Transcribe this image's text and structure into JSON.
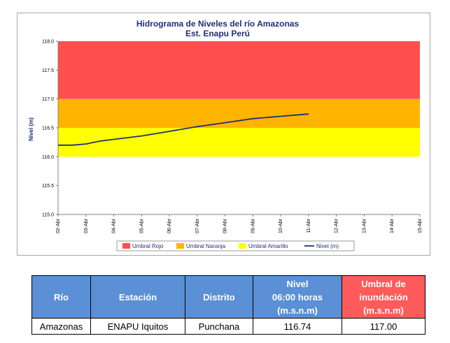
{
  "chart_data": {
    "type": "line",
    "title": "Hidrograma de Niveles del río Amazonas",
    "subtitle": "Est. Enapu Perú",
    "ylabel": "Nivel (m)",
    "xlabel": "",
    "ylim": [
      115.0,
      118.0
    ],
    "ytick_step": 0.5,
    "ytick_labels": [
      "115.0",
      "115.5",
      "116.0",
      "116.5",
      "117.0",
      "117.5",
      "118.0"
    ],
    "categories": [
      "02-Abr",
      "03-Abr",
      "04-Abr",
      "05-Abr",
      "06-Abr",
      "07-Abr",
      "08-Abr",
      "09-Abr",
      "10-Abr",
      "11-Abr",
      "12-Abr",
      "13-Abr",
      "14-Abr",
      "15-Abr"
    ],
    "bands": [
      {
        "name": "Umbral Rojo",
        "from": 117.0,
        "to": 118.0,
        "color": "#ff4f4f"
      },
      {
        "name": "Umbral Naranja",
        "from": 116.5,
        "to": 117.0,
        "color": "#ffb400"
      },
      {
        "name": "Umbral Amarillo",
        "from": 116.0,
        "to": 116.5,
        "color": "#ffff00"
      }
    ],
    "series": [
      {
        "name": "Nivel (m)",
        "color": "#1f2f7a",
        "x": [
          0,
          0.5,
          1,
          1.5,
          2,
          3,
          4,
          5,
          6,
          7,
          8,
          8.5,
          9
        ],
        "values": [
          116.2,
          116.2,
          116.22,
          116.27,
          116.3,
          116.36,
          116.44,
          116.52,
          116.59,
          116.66,
          116.7,
          116.72,
          116.74
        ]
      }
    ],
    "legend_position": "bottom",
    "grid": false
  },
  "table": {
    "headers": [
      "Río",
      "Estación",
      "Distrito",
      "Nivel\n06:00 horas\n(m.s.n.m)",
      "Umbral de\ninundación\n(m.s.n.m)"
    ],
    "row": [
      "Amazonas",
      "ENAPU Iquitos",
      "Punchana",
      "116.74",
      "117.00"
    ],
    "colors": {
      "header_blue": "#5b8fd6",
      "header_red": "#ff5b5b"
    }
  }
}
